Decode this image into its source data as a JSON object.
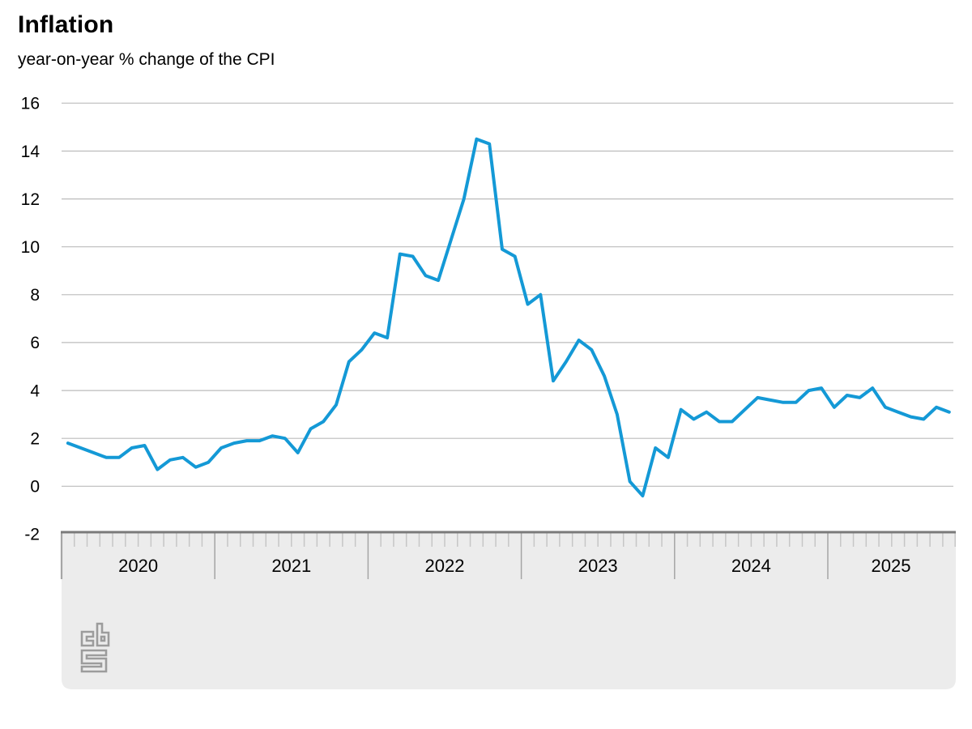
{
  "header": {
    "title": "Inflation",
    "subtitle": "year-on-year % change of the CPI"
  },
  "chart_data": {
    "type": "line",
    "title": "Inflation",
    "subtitle": "year-on-year % change of the CPI",
    "x_frequency": "monthly",
    "x_start": "2020-01",
    "x_end": "2025-10",
    "year_labels": [
      "2020",
      "2021",
      "2022",
      "2023",
      "2024",
      "2025"
    ],
    "yticks": [
      16,
      14,
      12,
      10,
      8,
      6,
      4,
      2,
      0,
      -2
    ],
    "ylim": [
      -2,
      16
    ],
    "grid": "horizontal-only",
    "legend": "none",
    "series": [
      {
        "name": "CPI year-on-year % change",
        "color": "#1499d6",
        "values": [
          1.8,
          1.6,
          1.4,
          1.2,
          1.2,
          1.6,
          1.7,
          0.7,
          1.1,
          1.2,
          0.8,
          1.0,
          1.6,
          1.8,
          1.9,
          1.9,
          2.1,
          2.0,
          1.4,
          2.4,
          2.7,
          3.4,
          5.2,
          5.7,
          6.4,
          6.2,
          9.7,
          9.6,
          8.8,
          8.6,
          10.3,
          12.0,
          14.5,
          14.3,
          9.9,
          9.6,
          7.6,
          8.0,
          4.4,
          5.2,
          6.1,
          5.7,
          4.6,
          3.0,
          0.2,
          -0.4,
          1.6,
          1.2,
          3.2,
          2.8,
          3.1,
          2.7,
          2.7,
          3.2,
          3.7,
          3.6,
          3.5,
          3.5,
          4.0,
          4.1,
          3.3,
          3.8,
          3.7,
          4.1,
          3.3,
          3.1,
          2.9,
          2.8,
          3.3,
          3.1
        ]
      }
    ],
    "style": {
      "line_color": "#1499d6",
      "grid_color": "#bcbcbc",
      "band_background": "#ececec",
      "axis_line_color": "#7a7a7a",
      "minor_tick_color": "#c6c6c6",
      "year_tick_color": "#a5a5a5",
      "label_color": "#000000"
    }
  },
  "logo": {
    "name": "cbs-logo",
    "color": "#9c9c9c"
  }
}
